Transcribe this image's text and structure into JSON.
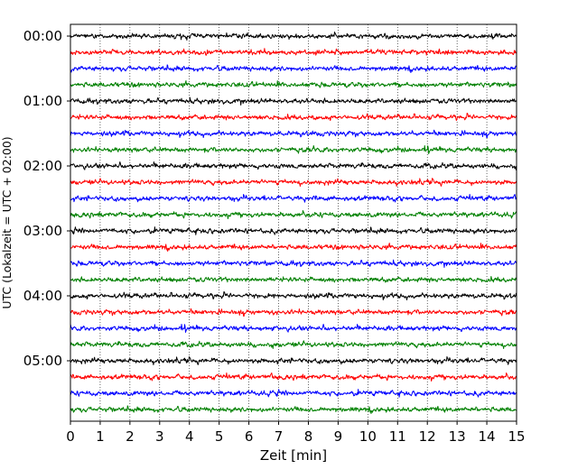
{
  "chart_data": {
    "type": "line",
    "title": "",
    "xlabel": "Zeit  [min]",
    "ylabel": "UTC (Lokalzeit = UTC + 02:00)",
    "xlim": [
      0,
      15
    ],
    "x_ticks": [
      0,
      1,
      2,
      3,
      4,
      5,
      6,
      7,
      8,
      9,
      10,
      11,
      12,
      13,
      14,
      15
    ],
    "grid": "vertical dotted",
    "legend": "none",
    "y_ticks": [
      "00:00",
      "01:00",
      "02:00",
      "03:00",
      "04:00",
      "05:00"
    ],
    "trace_minutes_per_row": 15,
    "trace_start_minutes": [
      0,
      15,
      30,
      45,
      60,
      75,
      90,
      105,
      120,
      135,
      150,
      165,
      180,
      195,
      210,
      225,
      240,
      255,
      270,
      285,
      300,
      315,
      330,
      345
    ],
    "trace_colors": [
      "#000000",
      "#ff0000",
      "#0000ff",
      "#008000"
    ]
  }
}
